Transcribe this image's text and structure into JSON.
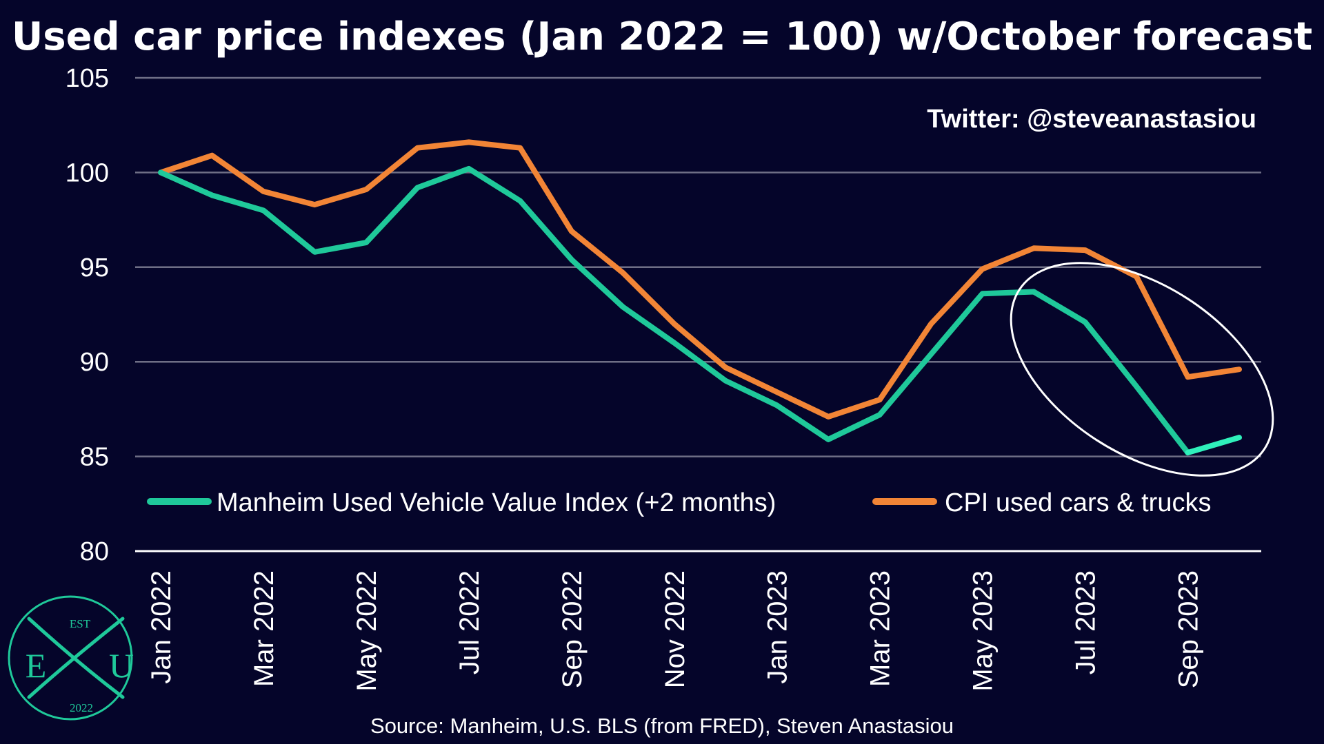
{
  "colors": {
    "background": "#05052a",
    "manheim": "#1fc99a",
    "manheim_forecast": "#2ff0bb",
    "cpi": "#f28536",
    "grid": "#6f6f86",
    "axis": "#ffffff",
    "annotation_circle": "#ffffff",
    "logo": "#1fc99a"
  },
  "twitter_handle": "Twitter: @steveanastasiou",
  "source": "Source: Manheim, U.S. BLS (from FRED), Steven Anastasiou",
  "logo": {
    "top": "EST",
    "left": "E",
    "right": "U",
    "bottom": "2022"
  },
  "chart_data": {
    "type": "line",
    "title": "Used car price indexes (Jan 2022 = 100) w/October forecast",
    "xlabel": "",
    "ylabel": "",
    "ylim": [
      80,
      105
    ],
    "yticks": [
      80,
      85,
      90,
      95,
      100,
      105
    ],
    "grid": true,
    "legend_position": "bottom",
    "x": [
      "Jan 2022",
      "Feb 2022",
      "Mar 2022",
      "Apr 2022",
      "May 2022",
      "Jun 2022",
      "Jul 2022",
      "Aug 2022",
      "Sep 2022",
      "Oct 2022",
      "Nov 2022",
      "Dec 2022",
      "Jan 2023",
      "Feb 2023",
      "Mar 2023",
      "Apr 2023",
      "May 2023",
      "Jun 2023",
      "Jul 2023",
      "Aug 2023",
      "Sep 2023",
      "Oct 2023"
    ],
    "xtick_labels": [
      "Jan 2022",
      "Mar 2022",
      "May 2022",
      "Jul 2022",
      "Sep 2022",
      "Nov 2022",
      "Jan 2023",
      "Mar 2023",
      "May 2023",
      "Jul 2023",
      "Sep 2023"
    ],
    "series": [
      {
        "name": "Manheim Used Vehicle Value Index (+2 months)",
        "values": [
          100.0,
          98.8,
          98.0,
          95.8,
          96.3,
          99.2,
          100.2,
          98.5,
          95.4,
          92.9,
          91.0,
          89.0,
          87.7,
          85.9,
          87.2,
          90.4,
          93.6,
          93.7,
          92.1,
          88.7,
          85.2,
          86.0
        ],
        "forecast_from_index": 20
      },
      {
        "name": "CPI used cars & trucks",
        "values": [
          100.0,
          100.9,
          99.0,
          98.3,
          99.1,
          101.3,
          101.6,
          101.3,
          96.9,
          94.7,
          92.0,
          89.7,
          88.4,
          87.1,
          88.0,
          92.0,
          94.9,
          96.0,
          95.9,
          94.5,
          89.2,
          89.6
        ]
      }
    ],
    "annotations": [
      {
        "type": "ellipse",
        "from": "Jun 2023",
        "to": "Oct 2023",
        "color": "#ffffff"
      }
    ]
  }
}
